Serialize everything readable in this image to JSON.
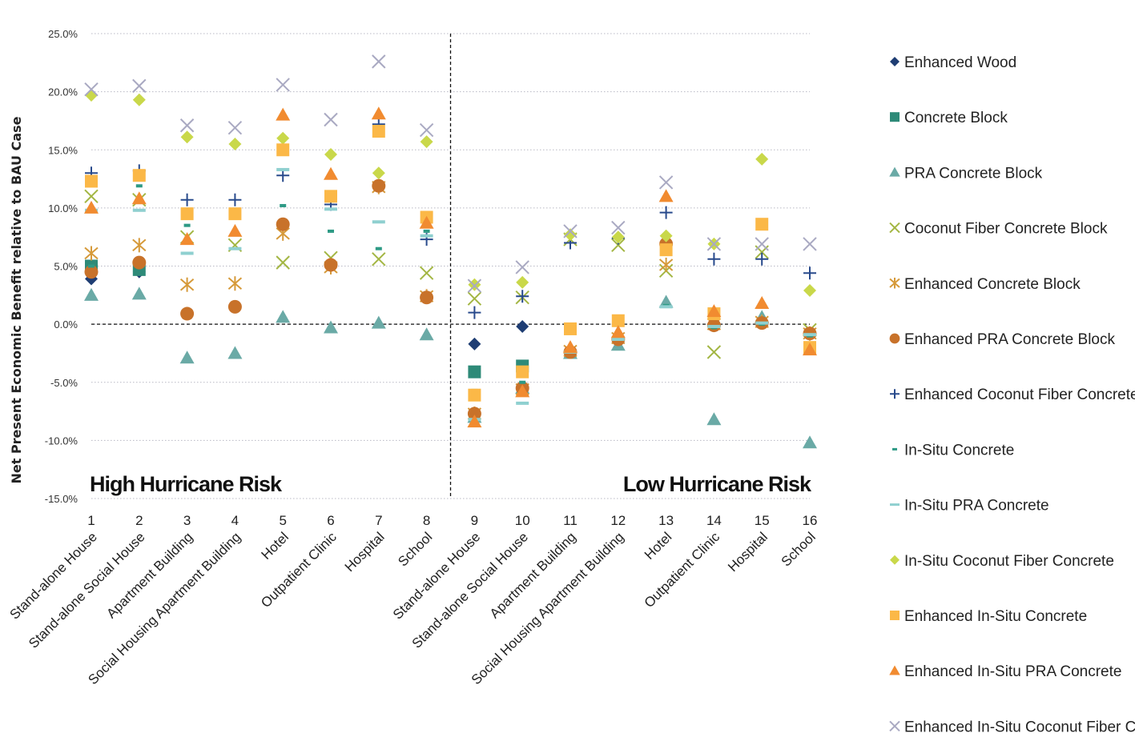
{
  "chart_data": {
    "type": "scatter",
    "title": "",
    "ylabel": "Net Present Economic Benefit relative to  BAU Case",
    "xlabel": "",
    "ylim": [
      -15,
      25
    ],
    "yticks": [
      25,
      20,
      15,
      10,
      5,
      0,
      -5,
      -10,
      -15
    ],
    "ytick_labels": [
      "25.0%",
      "20.0%",
      "15.0%",
      "10.0%",
      "5.0%",
      "0.0%",
      "-5.0%",
      "-10.0%",
      "-15.0%"
    ],
    "grid": "horizontal dotted",
    "legend_position": "right",
    "x_numbers": [
      "1",
      "2",
      "3",
      "4",
      "5",
      "6",
      "7",
      "8",
      "9",
      "10",
      "11",
      "12",
      "13",
      "14",
      "15",
      "16"
    ],
    "categories": [
      "Stand-alone House",
      "Stand-alone Social House",
      "Apartment Building",
      "Social Housing Apartment Building",
      "Hotel",
      "Outpatient Clinic",
      "Hospital",
      "School",
      "Stand-alone House",
      "Stand-alone Social House",
      "Apartment Building",
      "Social Housing Apartment Building",
      "Hotel",
      "Outpatient Clinic",
      "Hospital",
      "School"
    ],
    "regions": [
      "High Hurricane Risk",
      "Low Hurricane Risk"
    ],
    "series": [
      {
        "name": "Enhanced Wood",
        "marker": "diamond",
        "color": "#1e3d73",
        "values": [
          3.9,
          4.5,
          null,
          null,
          null,
          null,
          null,
          null,
          -1.7,
          -0.2,
          null,
          null,
          null,
          null,
          null,
          null
        ]
      },
      {
        "name": "Concrete Block",
        "marker": "square",
        "color": "#2e8a78",
        "values": [
          5.0,
          4.7,
          null,
          null,
          null,
          null,
          null,
          null,
          -4.1,
          -3.6,
          null,
          null,
          null,
          null,
          null,
          null
        ]
      },
      {
        "name": "PRA Concrete Block",
        "marker": "triangle",
        "color": "#6aaaa6",
        "values": [
          2.5,
          2.6,
          -2.9,
          -2.5,
          0.6,
          -0.3,
          0.1,
          -0.9,
          -8.0,
          -5.5,
          -2.5,
          -1.8,
          1.9,
          -8.2,
          0.6,
          -10.2
        ]
      },
      {
        "name": "Coconut Fiber Concrete Block",
        "marker": "x",
        "color": "#a3b643",
        "values": [
          11.0,
          10.7,
          7.5,
          6.8,
          5.3,
          5.7,
          5.6,
          4.4,
          2.2,
          2.3,
          7.3,
          6.8,
          4.6,
          -2.4,
          6.2,
          -0.5
        ]
      },
      {
        "name": "Enhanced Concrete Block",
        "marker": "asterisk",
        "color": "#d69a3a",
        "values": [
          6.1,
          6.8,
          3.4,
          3.5,
          7.8,
          4.9,
          11.8,
          2.4,
          -7.7,
          -5.6,
          -2.3,
          -1.2,
          5.1,
          0.0,
          0.2,
          -0.8
        ]
      },
      {
        "name": "Enhanced PRA Concrete Block",
        "marker": "circle",
        "color": "#c8722a",
        "values": [
          4.5,
          5.3,
          0.9,
          1.5,
          8.6,
          5.1,
          11.9,
          2.3,
          -7.7,
          -5.5,
          -2.4,
          -1.3,
          6.9,
          -0.1,
          0.1,
          -0.8
        ]
      },
      {
        "name": "Enhanced Coconut Fiber Concrete Block",
        "marker": "plus",
        "color": "#284a8c",
        "values": [
          13.0,
          13.2,
          10.7,
          10.7,
          12.8,
          10.3,
          17.2,
          7.3,
          1.0,
          2.4,
          7.0,
          7.4,
          9.6,
          5.6,
          5.6,
          4.4
        ]
      },
      {
        "name": "In-Situ Concrete",
        "marker": "dash-short",
        "color": "#2e9a85",
        "values": [
          5.0,
          11.9,
          8.5,
          7.9,
          10.2,
          8.0,
          6.5,
          8.0,
          -5.7,
          -5.0,
          -2.4,
          -1.2,
          1.6,
          -0.3,
          0.0,
          -1.0
        ]
      },
      {
        "name": "In-Situ PRA Concrete",
        "marker": "dash",
        "color": "#8fd0d0",
        "values": [
          9.8,
          9.8,
          6.1,
          6.5,
          13.3,
          9.9,
          8.8,
          7.6,
          -8.2,
          -6.8,
          -2.4,
          -1.3,
          1.5,
          -0.2,
          0.1,
          -0.9
        ]
      },
      {
        "name": "In-Situ Coconut Fiber Concrete",
        "marker": "diamond",
        "color": "#c9d84a",
        "values": [
          19.7,
          19.3,
          16.1,
          15.5,
          16.0,
          14.6,
          13.0,
          15.7,
          3.4,
          3.6,
          7.7,
          7.5,
          7.6,
          6.9,
          14.2,
          2.9
        ]
      },
      {
        "name": "Enhanced In-Situ Concrete",
        "marker": "square",
        "color": "#fbb847",
        "values": [
          12.3,
          12.8,
          9.5,
          9.5,
          15.0,
          11.0,
          16.6,
          9.2,
          -6.1,
          -4.1,
          -0.4,
          0.3,
          6.4,
          0.9,
          8.6,
          -2.0
        ]
      },
      {
        "name": "Enhanced In-Situ PRA Concrete",
        "marker": "triangle",
        "color": "#f18b30",
        "values": [
          10.0,
          10.8,
          7.3,
          8.0,
          18.0,
          12.9,
          18.1,
          8.7,
          -8.4,
          -5.8,
          -2.0,
          -0.7,
          11.0,
          1.1,
          1.8,
          -2.2
        ]
      },
      {
        "name": "Enhanced In-Situ Coconut Fiber Concrete",
        "marker": "x",
        "color": "#a9a9c2",
        "values": [
          20.2,
          20.5,
          17.1,
          16.9,
          20.6,
          17.6,
          22.6,
          16.7,
          3.3,
          4.9,
          8.0,
          8.3,
          12.2,
          6.9,
          6.9,
          6.9
        ]
      }
    ]
  }
}
